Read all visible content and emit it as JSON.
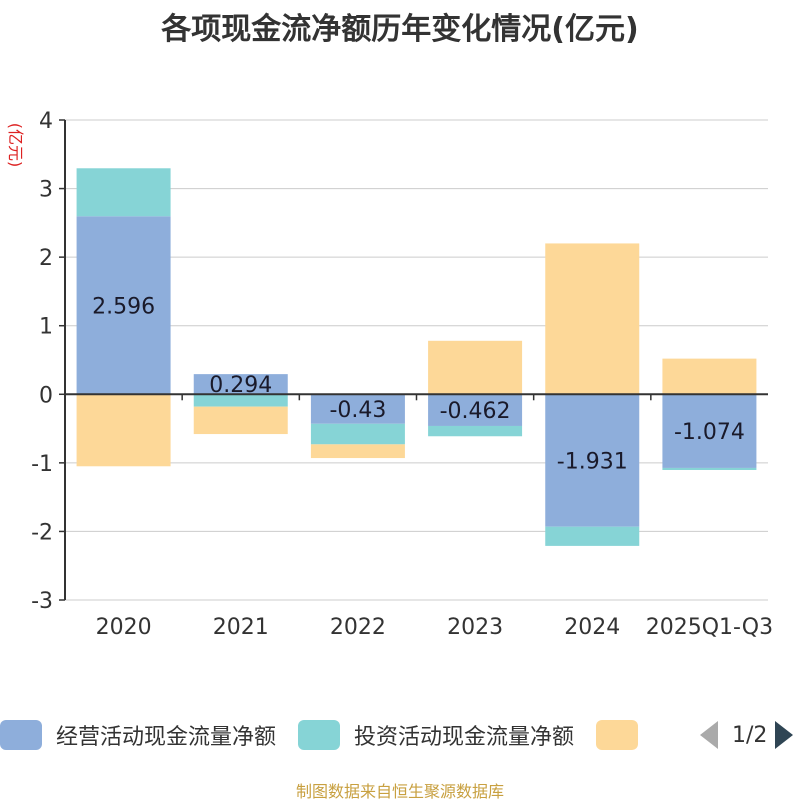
{
  "chart_data": {
    "type": "bar",
    "stacked": true,
    "title": "各项现金流净额历年变化情况(亿元)",
    "ylabel": "(亿元)",
    "ylim": [
      -3,
      4
    ],
    "yticks": [
      -3,
      -2,
      -1,
      0,
      1,
      2,
      3,
      4
    ],
    "categories": [
      "2020",
      "2021",
      "2022",
      "2023",
      "2024",
      "2025Q1-Q3"
    ],
    "series": [
      {
        "name": "经营活动现金流量净额",
        "color": "#8eaedb",
        "values": [
          2.596,
          0.294,
          -0.43,
          -0.462,
          -1.931,
          -1.074
        ],
        "labels_shown": true
      },
      {
        "name": "投资活动现金流量净额",
        "color": "#86d4d6",
        "values": [
          0.7,
          -0.18,
          -0.3,
          -0.15,
          -0.28,
          -0.03
        ]
      },
      {
        "name": "",
        "color": "#fdd898",
        "values": [
          -1.05,
          -0.4,
          -0.2,
          0.78,
          2.2,
          0.52
        ]
      }
    ],
    "data_labels": [
      "2.596",
      "0.294",
      "-0.43",
      "-0.462",
      "-1.931",
      "-1.074"
    ],
    "legend": {
      "position": "bottom",
      "page": "1/2"
    }
  },
  "source": "制图数据来自恒生聚源数据库"
}
